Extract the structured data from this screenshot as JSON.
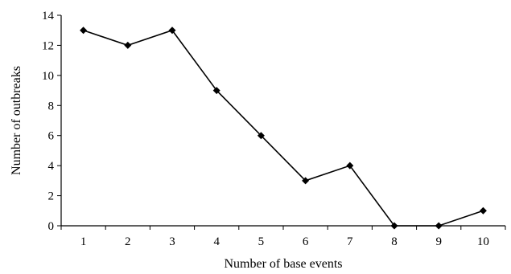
{
  "chart_data": {
    "type": "line",
    "title": "",
    "xlabel": "Number of base events",
    "ylabel": "Number of outbreaks",
    "x": [
      1,
      2,
      3,
      4,
      5,
      6,
      7,
      8,
      9,
      10
    ],
    "y_ticks": [
      0,
      2,
      4,
      6,
      8,
      10,
      12,
      14
    ],
    "ylim": [
      0,
      14
    ],
    "grid": false,
    "legend": "none",
    "series": [
      {
        "values": [
          13,
          12,
          13,
          9,
          6,
          3,
          4,
          0,
          0,
          1
        ],
        "marker": "diamond",
        "color": "#000000"
      }
    ]
  }
}
